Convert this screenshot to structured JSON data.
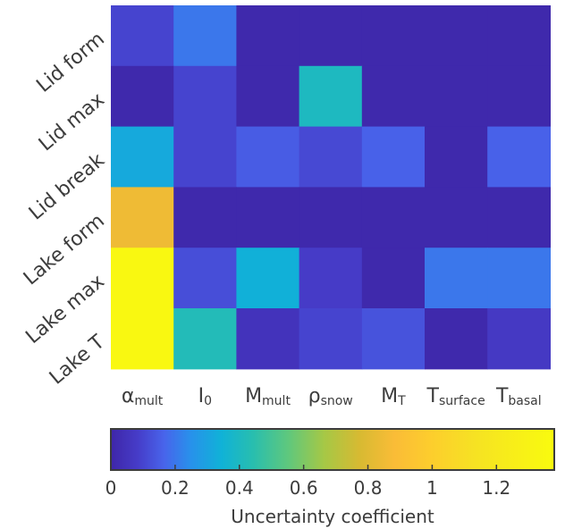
{
  "chart_data": {
    "type": "heatmap",
    "rows": [
      "Lid form",
      "Lid max",
      "Lid break",
      "Lake form",
      "Lake max",
      "Lake T"
    ],
    "columns": [
      {
        "main": "α",
        "sub": "mult"
      },
      {
        "main": "I",
        "sub": "0"
      },
      {
        "main": "M",
        "sub": "mult"
      },
      {
        "main": "ρ",
        "sub": "snow"
      },
      {
        "main": "M",
        "sub": "T"
      },
      {
        "main": "T",
        "sub": "surface"
      },
      {
        "main": "T",
        "sub": "basal"
      }
    ],
    "values": [
      [
        0.1,
        0.2,
        0.01,
        0.01,
        0.01,
        0.01,
        0.01
      ],
      [
        0.01,
        0.1,
        0.01,
        0.4,
        0.01,
        0.01,
        0.01
      ],
      [
        0.32,
        0.1,
        0.15,
        0.11,
        0.16,
        0.01,
        0.16
      ],
      [
        0.85,
        0.01,
        0.01,
        0.01,
        0.01,
        0.01,
        0.01
      ],
      [
        1.35,
        0.12,
        0.34,
        0.08,
        0.01,
        0.2,
        0.2
      ],
      [
        1.35,
        0.42,
        0.05,
        0.1,
        0.13,
        0.01,
        0.07
      ]
    ],
    "colorbar": {
      "label": "Uncertainty coefficient",
      "ticks": [
        "0",
        "0.2",
        "0.4",
        "0.6",
        "0.8",
        "1",
        "1.2"
      ],
      "range": [
        0,
        1.38
      ],
      "colormap": "parula"
    }
  }
}
